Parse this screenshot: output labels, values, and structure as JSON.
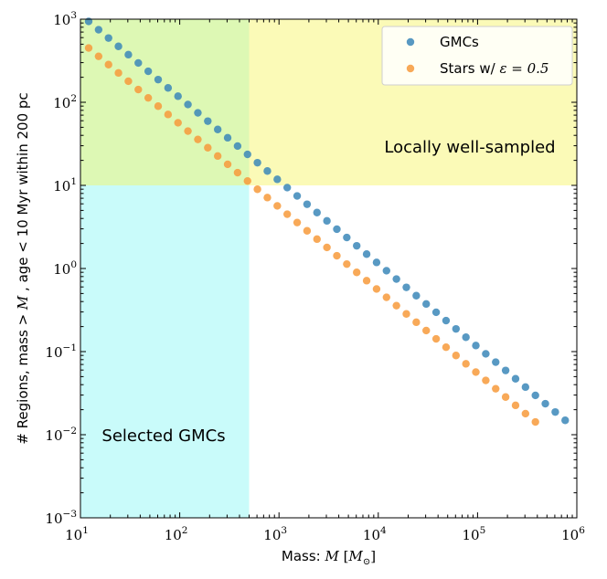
{
  "chart_data": {
    "type": "scatter",
    "xscale": "log",
    "yscale": "log",
    "xlim": [
      10,
      1000000
    ],
    "ylim": [
      0.001,
      1000
    ],
    "xlabel": {
      "prefix": "Mass: ",
      "var": "M",
      "unit_open": " [",
      "unit_var": "M",
      "unit_sub": "⊙",
      "unit_close": "]"
    },
    "ylabel": {
      "prefix": "# Regions, mass > ",
      "var": "M",
      "suffix": " , age < 10 Myr within 200 pc"
    },
    "xticks": [
      {
        "base": "10",
        "exp": "1",
        "value": 10
      },
      {
        "base": "10",
        "exp": "2",
        "value": 100
      },
      {
        "base": "10",
        "exp": "3",
        "value": 1000
      },
      {
        "base": "10",
        "exp": "4",
        "value": 10000
      },
      {
        "base": "10",
        "exp": "5",
        "value": 100000
      },
      {
        "base": "10",
        "exp": "6",
        "value": 1000000
      }
    ],
    "yticks": [
      {
        "base": "10",
        "exp": "−3",
        "value": 0.001
      },
      {
        "base": "10",
        "exp": "−2",
        "value": 0.01
      },
      {
        "base": "10",
        "exp": "−1",
        "value": 0.1
      },
      {
        "base": "10",
        "exp": "0",
        "value": 1
      },
      {
        "base": "10",
        "exp": "1",
        "value": 10
      },
      {
        "base": "10",
        "exp": "2",
        "value": 100
      },
      {
        "base": "10",
        "exp": "3",
        "value": 1000
      }
    ],
    "regions": [
      {
        "name": "selected-gmcs",
        "x_range": [
          10,
          500
        ],
        "y_range": [
          0.001,
          1000
        ],
        "color": "#7ff5f2",
        "opacity": 0.42
      },
      {
        "name": "well-sampled",
        "x_range": [
          10,
          1000000
        ],
        "y_range": [
          10,
          1000
        ],
        "color": "#f6f560",
        "opacity": 0.45
      }
    ],
    "annotations": {
      "well_sampled": "Locally well-sampled",
      "selected": "Selected GMCs"
    },
    "series": [
      {
        "name": "GMCs",
        "color": "#3b87b8",
        "x_start": 12.1,
        "log_step": 0.1,
        "count": 49,
        "y_at_x_start": 940,
        "log_slope": -1.0
      },
      {
        "name": "Stars w/ ε = 0.5",
        "legend_prefix": "Stars w/ ",
        "legend_math": "ε = 0.5",
        "color": "#f79a3b",
        "x_start": 12.1,
        "log_step": 0.1,
        "count": 46,
        "y_at_x_start": 450,
        "log_slope": -1.0
      }
    ],
    "legend_position": "top-right"
  }
}
